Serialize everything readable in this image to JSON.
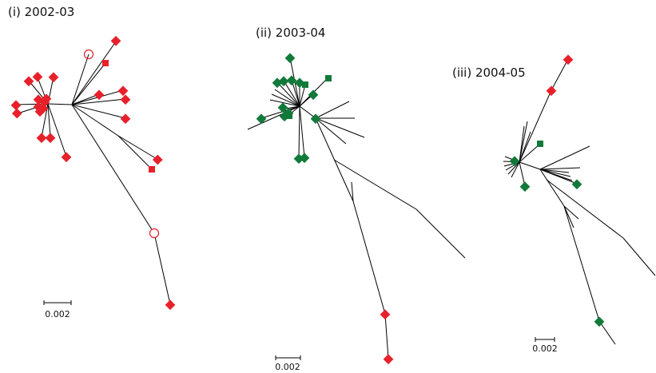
{
  "figure": {
    "panels": [
      {
        "id": "i",
        "title": "(i) 2002-03",
        "scale_label": "0.002"
      },
      {
        "id": "ii",
        "title": "(ii) 2003-04",
        "scale_label": "0.002"
      },
      {
        "id": "iii",
        "title": "(iii) 2004-05",
        "scale_label": "0.002"
      }
    ],
    "colors": {
      "branch": "#000000",
      "red_marker": "#e8202a",
      "green_marker": "#117a3a"
    },
    "marker_types": [
      "filled-diamond",
      "filled-square",
      "open-circle"
    ]
  }
}
